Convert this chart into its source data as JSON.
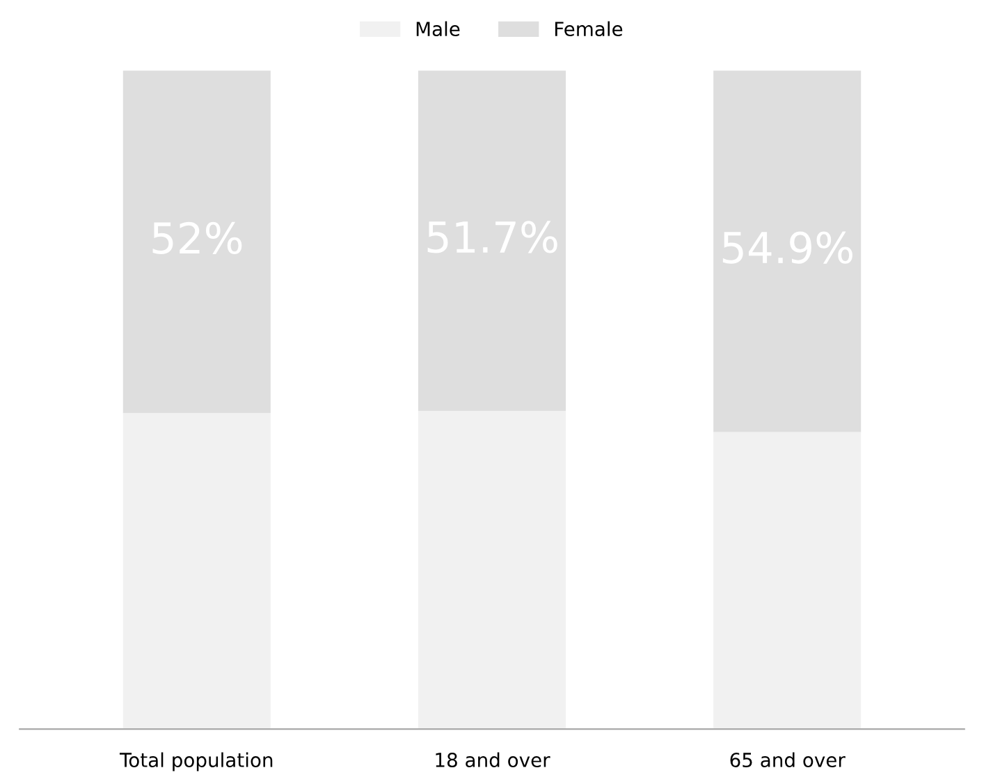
{
  "chart_data": {
    "type": "bar",
    "stacked": true,
    "categories": [
      "Total population",
      "18 and over",
      "65 and over"
    ],
    "series": [
      {
        "name": "Male",
        "color": "#f1f1f1",
        "values": [
          48,
          48.3,
          45.1
        ]
      },
      {
        "name": "Female",
        "color": "#dedede",
        "values": [
          52,
          51.7,
          54.9
        ],
        "value_labels": [
          "52%",
          "51.7%",
          "54.9%"
        ]
      }
    ],
    "legend": "top",
    "grid": false
  }
}
